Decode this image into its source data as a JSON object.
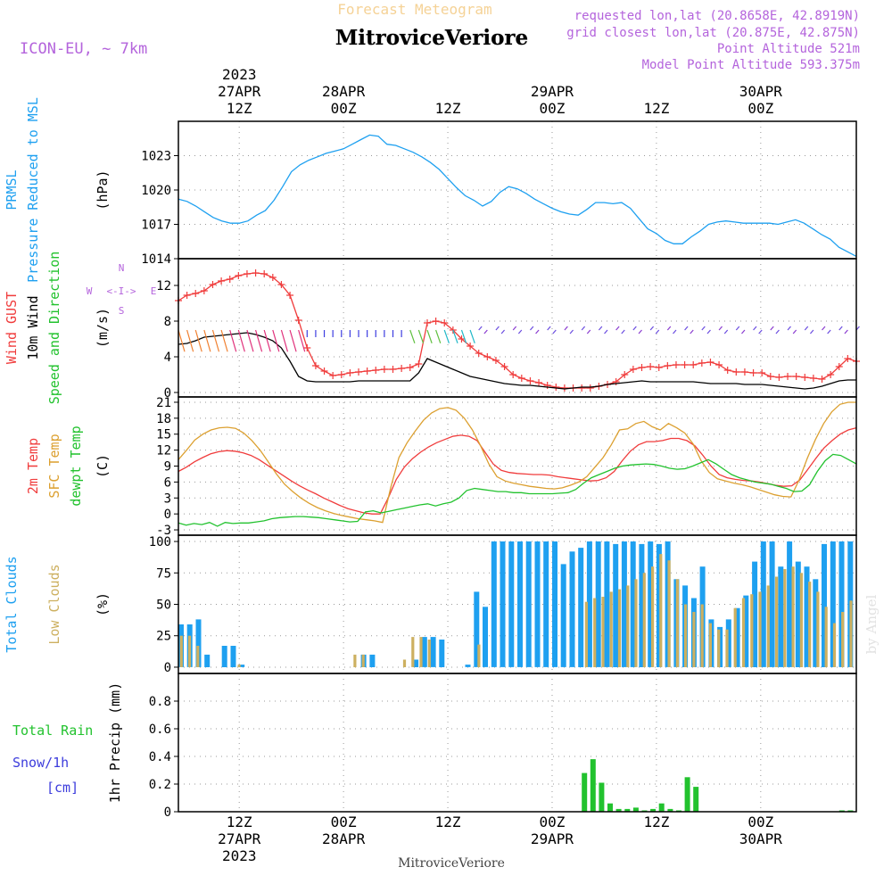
{
  "header": {
    "forecast_label": "Forecast Meteogram",
    "location": "MitroviceVeriore",
    "model": "ICON-EU, ~ 7km",
    "requested_point": "requested lon,lat (20.8658E, 42.8919N)",
    "closest_point": "grid closest lon,lat (20.875E, 42.875N)",
    "point_altitude": "Point Altitude 521m",
    "model_altitude": "Model Point Altitude 593.375m",
    "watermark": "by Angel"
  },
  "time_axis": {
    "steps_hours": 78,
    "start_hour_offset": 0,
    "top_ticks": [
      {
        "hour": 7,
        "lines": [
          "2023",
          "27APR",
          "12Z"
        ]
      },
      {
        "hour": 19,
        "lines": [
          "28APR",
          "00Z"
        ]
      },
      {
        "hour": 31,
        "lines": [
          "12Z"
        ]
      },
      {
        "hour": 43,
        "lines": [
          "29APR",
          "00Z"
        ]
      },
      {
        "hour": 55,
        "lines": [
          "12Z"
        ]
      },
      {
        "hour": 67,
        "lines": [
          "30APR",
          "00Z"
        ]
      }
    ],
    "bottom_ticks": [
      {
        "hour": 7,
        "lines": [
          "12Z",
          "27APR",
          "2023"
        ]
      },
      {
        "hour": 19,
        "lines": [
          "00Z",
          "28APR"
        ]
      },
      {
        "hour": 31,
        "lines": [
          "12Z"
        ]
      },
      {
        "hour": 43,
        "lines": [
          "00Z",
          "29APR"
        ]
      },
      {
        "hour": 55,
        "lines": [
          "12Z"
        ]
      },
      {
        "hour": 67,
        "lines": [
          "00Z",
          "30APR"
        ]
      }
    ],
    "footer_label": "MitroviceVeriore"
  },
  "colors": {
    "pressure": "#1ea0f0",
    "gust": "#f03c3c",
    "wind": "#000000",
    "wind_title": "#22c22e",
    "temp": "#f03c3c",
    "sfc_temp": "#dca030",
    "dewpt": "#22c22e",
    "total_clouds": "#1ea0f0",
    "low_clouds": "#cdb060",
    "rain": "#22c22e",
    "snow": "#3c3cdc",
    "meta": "#b464dc",
    "forecast_label": "#f5d296",
    "grid": "#999999"
  },
  "chart_data": [
    {
      "type": "line",
      "panel": "pressure",
      "title_lines": [
        "PRMSL",
        "Pressure Reduced to MSL"
      ],
      "ylabel": "(hPa)",
      "ylim": [
        1014,
        1026
      ],
      "yticks": [
        1014,
        1017,
        1020,
        1023
      ],
      "series": [
        {
          "name": "PRMSL",
          "values": [
            1019.2,
            1019.0,
            1018.6,
            1018.1,
            1017.6,
            1017.3,
            1017.1,
            1017.1,
            1017.3,
            1017.8,
            1018.2,
            1019.1,
            1020.3,
            1021.6,
            1022.2,
            1022.6,
            1022.9,
            1023.2,
            1023.4,
            1023.6,
            1024.0,
            1024.4,
            1024.8,
            1024.7,
            1024.0,
            1023.9,
            1023.6,
            1023.3,
            1022.9,
            1022.4,
            1021.8,
            1021.0,
            1020.2,
            1019.5,
            1019.1,
            1018.6,
            1019.0,
            1019.8,
            1020.3,
            1020.1,
            1019.7,
            1019.2,
            1018.8,
            1018.4,
            1018.1,
            1017.9,
            1017.8,
            1018.3,
            1018.9,
            1018.9,
            1018.8,
            1018.9,
            1018.4,
            1017.5,
            1016.6,
            1016.2,
            1015.6,
            1015.3,
            1015.3,
            1015.9,
            1016.4,
            1017.0,
            1017.2,
            1017.3,
            1017.2,
            1017.1,
            1017.1,
            1017.1,
            1017.1,
            1017.0,
            1017.2,
            1017.4,
            1017.1,
            1016.6,
            1016.1,
            1015.7,
            1015.0,
            1014.6,
            1014.2
          ]
        }
      ]
    },
    {
      "type": "line",
      "panel": "wind",
      "title_lines": [
        "Wind GUST",
        "10m Wind",
        "Speed and Direction"
      ],
      "ylabel": "(m/s)",
      "compass": {
        "n": "N",
        "s": "S",
        "e": "E",
        "w": "W",
        "mark": "<-I->"
      },
      "ylim": [
        -0.5,
        15
      ],
      "yticks": [
        0,
        4,
        8,
        12
      ],
      "series": [
        {
          "name": "Wind GUST",
          "values": [
            10.3,
            10.9,
            11.1,
            11.4,
            12.1,
            12.5,
            12.7,
            13.1,
            13.3,
            13.4,
            13.3,
            12.9,
            12.1,
            10.9,
            8.1,
            5.0,
            3.0,
            2.4,
            1.9,
            2.0,
            2.2,
            2.3,
            2.4,
            2.5,
            2.6,
            2.6,
            2.7,
            2.8,
            3.2,
            7.8,
            8.0,
            7.8,
            7.0,
            6.0,
            5.2,
            4.4,
            4.0,
            3.6,
            2.9,
            2.0,
            1.6,
            1.3,
            1.1,
            0.8,
            0.6,
            0.5,
            0.5,
            0.5,
            0.5,
            0.7,
            0.9,
            1.2,
            2.0,
            2.6,
            2.8,
            2.9,
            2.8,
            3.0,
            3.1,
            3.1,
            3.1,
            3.3,
            3.4,
            3.1,
            2.5,
            2.3,
            2.3,
            2.2,
            2.2,
            1.8,
            1.7,
            1.8,
            1.8,
            1.7,
            1.6,
            1.5,
            2.0,
            2.9,
            3.8,
            3.5
          ]
        },
        {
          "name": "10m Wind",
          "values": [
            5.4,
            5.5,
            5.8,
            6.2,
            6.3,
            6.4,
            6.5,
            6.6,
            6.7,
            6.5,
            6.2,
            5.8,
            5.0,
            3.5,
            1.8,
            1.3,
            1.2,
            1.2,
            1.2,
            1.2,
            1.2,
            1.3,
            1.3,
            1.3,
            1.3,
            1.3,
            1.3,
            1.3,
            2.2,
            3.8,
            3.4,
            3.0,
            2.6,
            2.2,
            1.8,
            1.6,
            1.4,
            1.2,
            1.0,
            0.9,
            0.8,
            0.8,
            0.7,
            0.6,
            0.5,
            0.4,
            0.5,
            0.6,
            0.6,
            0.7,
            0.9,
            1.0,
            1.1,
            1.2,
            1.3,
            1.2,
            1.2,
            1.2,
            1.2,
            1.2,
            1.2,
            1.1,
            1.0,
            1.0,
            1.0,
            1.0,
            0.9,
            0.9,
            0.9,
            0.8,
            0.7,
            0.6,
            0.5,
            0.4,
            0.5,
            0.7,
            1.0,
            1.3,
            1.4,
            1.4
          ]
        }
      ]
    },
    {
      "type": "line",
      "panel": "temperature",
      "title_lines": [
        "2m Temp",
        "SFC Temp",
        "dewpt Temp"
      ],
      "ylabel": "(C)",
      "ylim": [
        -4,
        22
      ],
      "yticks": [
        -3,
        0,
        3,
        6,
        9,
        12,
        15,
        18,
        21
      ],
      "series": [
        {
          "name": "2m Temp",
          "values": [
            8.0,
            8.8,
            9.8,
            10.6,
            11.3,
            11.7,
            11.9,
            11.8,
            11.5,
            11.0,
            10.2,
            9.2,
            8.2,
            7.2,
            6.2,
            5.3,
            4.5,
            3.8,
            3.0,
            2.3,
            1.6,
            1.0,
            0.6,
            0.2,
            0.0,
            0.0,
            3.0,
            6.5,
            8.8,
            10.4,
            11.6,
            12.6,
            13.4,
            14.0,
            14.6,
            14.8,
            14.6,
            13.8,
            11.6,
            9.4,
            8.2,
            7.8,
            7.6,
            7.5,
            7.4,
            7.4,
            7.3,
            7.0,
            6.8,
            6.6,
            6.4,
            6.2,
            6.3,
            6.8,
            8.0,
            10.0,
            11.8,
            13.0,
            13.6,
            13.6,
            13.8,
            14.2,
            14.2,
            13.8,
            12.8,
            11.0,
            9.0,
            7.4,
            6.8,
            6.5,
            6.3,
            6.2,
            6.0,
            5.7,
            5.4,
            5.2,
            5.3,
            6.4,
            8.4,
            10.5,
            12.4,
            13.8,
            15.0,
            15.8,
            16.2
          ]
        },
        {
          "name": "SFC Temp",
          "values": [
            10.2,
            12.0,
            13.9,
            15.0,
            15.8,
            16.2,
            16.3,
            16.1,
            15.2,
            13.8,
            12.0,
            9.8,
            7.5,
            5.6,
            4.2,
            3.0,
            2.0,
            1.2,
            0.6,
            0.1,
            -0.3,
            -0.6,
            -0.9,
            -1.1,
            -1.3,
            -1.6,
            5.0,
            10.6,
            13.4,
            15.6,
            17.6,
            19.0,
            19.8,
            20.0,
            19.5,
            18.0,
            15.8,
            12.8,
            9.4,
            7.0,
            6.2,
            5.8,
            5.5,
            5.2,
            5.0,
            4.8,
            4.7,
            4.9,
            5.4,
            6.0,
            7.0,
            8.8,
            10.6,
            13.0,
            15.8,
            16.0,
            17.0,
            17.4,
            16.4,
            15.8,
            17.0,
            16.2,
            15.2,
            13.2,
            10.0,
            7.8,
            6.6,
            6.2,
            5.8,
            5.5,
            5.1,
            4.6,
            4.1,
            3.6,
            3.3,
            3.2,
            6.4,
            10.5,
            14.0,
            17.0,
            19.2,
            20.6,
            21.0,
            21.0
          ]
        },
        {
          "name": "dewpt Temp",
          "values": [
            -1.7,
            -2.1,
            -1.8,
            -2.0,
            -1.6,
            -2.3,
            -1.6,
            -1.8,
            -1.7,
            -1.7,
            -1.5,
            -1.3,
            -0.9,
            -0.7,
            -0.6,
            -0.5,
            -0.5,
            -0.6,
            -0.7,
            -0.9,
            -1.1,
            -1.3,
            -1.5,
            -1.4,
            0.4,
            0.6,
            0.2,
            0.5,
            0.8,
            1.1,
            1.4,
            1.7,
            1.9,
            1.5,
            1.9,
            2.2,
            3.0,
            4.4,
            4.8,
            4.6,
            4.4,
            4.2,
            4.2,
            4.0,
            4.0,
            3.8,
            3.8,
            3.8,
            3.8,
            3.9,
            4.0,
            4.6,
            5.8,
            6.8,
            7.4,
            8.0,
            8.6,
            9.0,
            9.2,
            9.3,
            9.4,
            9.3,
            9.0,
            8.6,
            8.4,
            8.5,
            9.0,
            9.6,
            10.2,
            9.4,
            8.4,
            7.4,
            6.8,
            6.4,
            6.0,
            5.8,
            5.6,
            5.2,
            4.8,
            4.2,
            4.3,
            5.5,
            8.0,
            10.0,
            11.2,
            11.0,
            10.2,
            9.4
          ]
        }
      ]
    },
    {
      "type": "bar",
      "panel": "clouds",
      "title_lines": [
        "Total Clouds",
        "Low Clouds"
      ],
      "ylabel": "(%)",
      "ylim": [
        -5,
        105
      ],
      "yticks": [
        0,
        25,
        50,
        75,
        100
      ],
      "series": [
        {
          "name": "Total Clouds",
          "values": [
            34,
            34,
            38,
            10,
            0,
            17,
            17,
            2,
            0,
            0,
            0,
            0,
            0,
            0,
            0,
            0,
            0,
            0,
            0,
            0,
            0,
            10,
            10,
            0,
            0,
            0,
            0,
            6,
            24,
            24,
            22,
            0,
            0,
            2,
            60,
            48,
            100,
            100,
            100,
            100,
            100,
            100,
            100,
            100,
            82,
            92,
            95,
            100,
            100,
            100,
            98,
            100,
            100,
            98,
            100,
            98,
            100,
            70,
            65,
            55,
            80,
            38,
            32,
            38,
            47,
            57,
            84,
            100,
            100,
            80,
            100,
            84,
            80,
            70,
            98,
            100,
            100,
            100
          ]
        },
        {
          "name": "Low Clouds",
          "values": [
            25,
            25,
            17,
            0,
            0,
            0,
            0,
            2,
            0,
            0,
            0,
            0,
            0,
            0,
            0,
            0,
            0,
            0,
            0,
            0,
            0,
            10,
            10,
            0,
            0,
            0,
            0,
            6,
            24,
            24,
            22,
            0,
            0,
            0,
            0,
            0,
            18,
            0,
            0,
            0,
            0,
            0,
            0,
            0,
            0,
            0,
            0,
            0,
            0,
            52,
            55,
            56,
            60,
            62,
            65,
            70,
            75,
            80,
            90,
            85,
            70,
            50,
            44,
            50,
            35,
            30,
            30,
            47,
            55,
            58,
            60,
            65,
            72,
            78,
            80,
            75,
            68,
            60,
            48,
            35,
            44,
            53
          ]
        }
      ]
    },
    {
      "type": "bar",
      "panel": "precip",
      "title_lines": [
        "Total  Rain",
        "Snow/1h",
        "[cm]"
      ],
      "ylabel": "1hr Precip (mm)",
      "ylim": [
        0,
        1.0
      ],
      "yticks": [
        0,
        0.2,
        0.4,
        0.6,
        0.8
      ],
      "series": [
        {
          "name": "Total Rain",
          "values": [
            0,
            0,
            0,
            0,
            0,
            0,
            0,
            0,
            0,
            0,
            0,
            0,
            0,
            0,
            0,
            0,
            0,
            0,
            0,
            0,
            0,
            0,
            0,
            0,
            0,
            0,
            0,
            0,
            0,
            0,
            0,
            0,
            0,
            0,
            0,
            0,
            0,
            0,
            0,
            0,
            0,
            0,
            0,
            0,
            0,
            0,
            0,
            0.28,
            0.38,
            0.21,
            0.06,
            0.02,
            0.02,
            0.03,
            0.01,
            0.02,
            0.06,
            0.02,
            0.01,
            0.25,
            0.18,
            0,
            0,
            0,
            0,
            0,
            0,
            0,
            0,
            0,
            0,
            0,
            0,
            0,
            0,
            0,
            0,
            0.01,
            0.01
          ]
        }
      ]
    }
  ]
}
